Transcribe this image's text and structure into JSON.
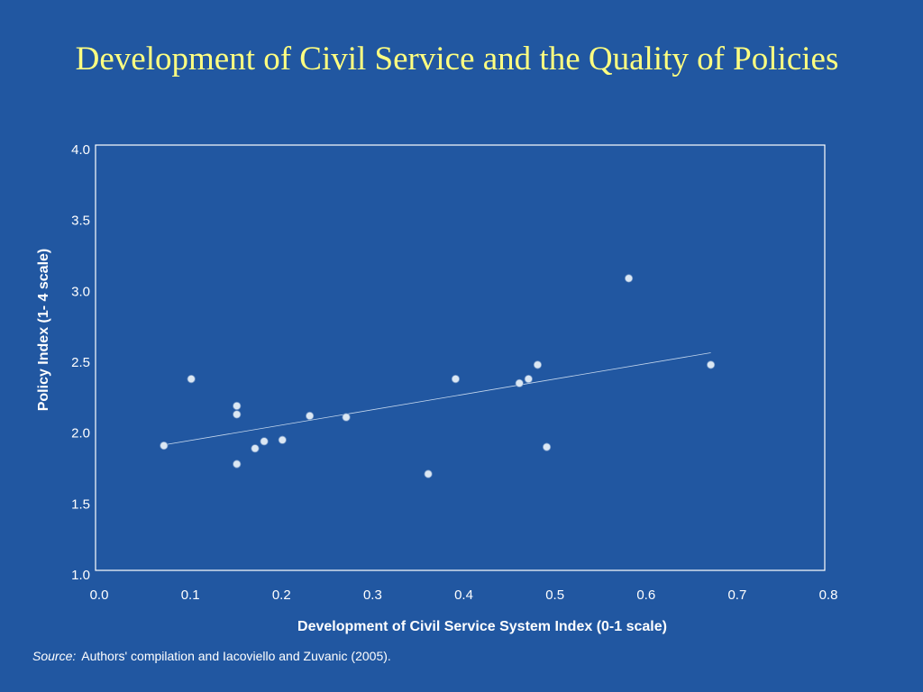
{
  "slide": {
    "title": "Development of Civil Service and the Quality of Policies",
    "source_label": "Source:",
    "source_text": "Authors' compilation and Iacoviello and Zuvanic (2005)."
  },
  "colors": {
    "background": "#2157a1",
    "title": "#ffff80",
    "axis": "#ffffff",
    "point_fill": "#dbe7f3",
    "trendline": "#c6d8ee"
  },
  "chart_data": {
    "type": "scatter",
    "title": "",
    "xlabel": "Development of Civil Service System Index (0-1 scale)",
    "ylabel": "Policy Index (1- 4 scale)",
    "xlim": [
      0.0,
      0.8
    ],
    "ylim": [
      1.0,
      4.0
    ],
    "x_ticks": [
      "0.0",
      "0.1",
      "0.2",
      "0.3",
      "0.4",
      "0.5",
      "0.6",
      "0.7",
      "0.8"
    ],
    "y_ticks": [
      "1.0",
      "1.5",
      "2.0",
      "2.5",
      "3.0",
      "3.5",
      "4.0"
    ],
    "grid": false,
    "points": [
      {
        "x": 0.075,
        "y": 1.88
      },
      {
        "x": 0.105,
        "y": 2.35
      },
      {
        "x": 0.155,
        "y": 2.16
      },
      {
        "x": 0.155,
        "y": 2.1
      },
      {
        "x": 0.155,
        "y": 1.75
      },
      {
        "x": 0.175,
        "y": 1.86
      },
      {
        "x": 0.185,
        "y": 1.91
      },
      {
        "x": 0.205,
        "y": 1.92
      },
      {
        "x": 0.235,
        "y": 2.09
      },
      {
        "x": 0.275,
        "y": 2.08
      },
      {
        "x": 0.365,
        "y": 1.68
      },
      {
        "x": 0.395,
        "y": 2.35
      },
      {
        "x": 0.465,
        "y": 2.32
      },
      {
        "x": 0.475,
        "y": 2.35
      },
      {
        "x": 0.485,
        "y": 2.45
      },
      {
        "x": 0.495,
        "y": 1.87
      },
      {
        "x": 0.585,
        "y": 3.06
      },
      {
        "x": 0.675,
        "y": 2.45
      }
    ],
    "trendline": {
      "x": [
        0.075,
        0.675
      ],
      "y": [
        1.885,
        2.535
      ]
    }
  }
}
